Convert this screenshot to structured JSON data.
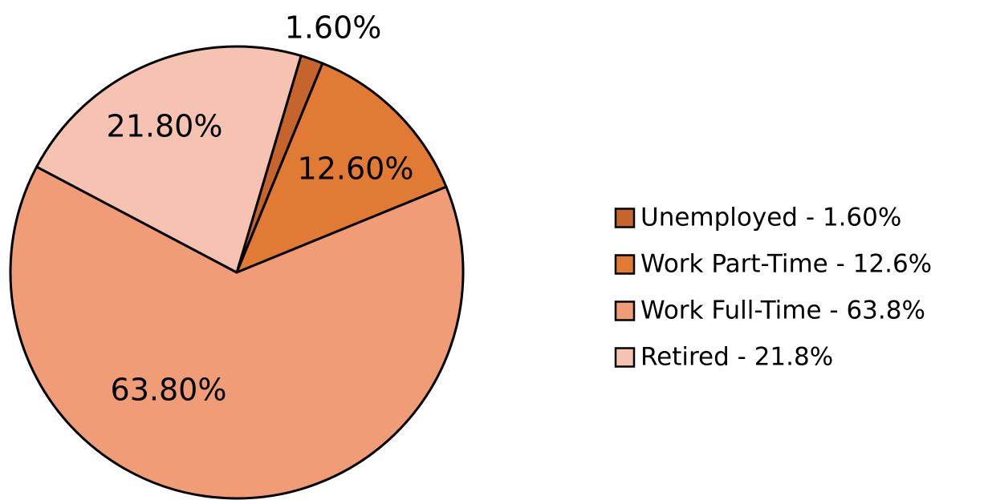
{
  "chart_data": {
    "type": "pie",
    "categories": [
      "Unemployed - 1.60%",
      "Work Part-Time - 12.6%",
      "Work Full-Time - 63.8%",
      "Retired - 21.8%"
    ],
    "values": [
      1.6,
      12.6,
      63.8,
      21.8
    ],
    "value_labels": [
      "1.60%",
      "12.60%",
      "63.80%",
      "21.80%"
    ],
    "colors": [
      "#c5652d",
      "#e07a35",
      "#f09c76",
      "#f6c3b2"
    ],
    "legend": "right"
  }
}
